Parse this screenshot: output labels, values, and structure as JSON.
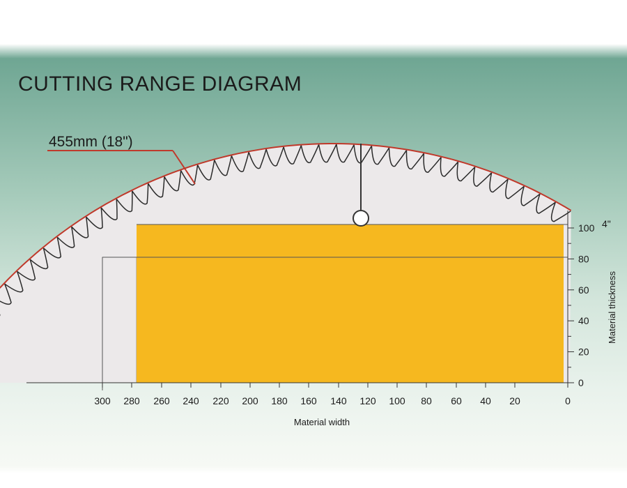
{
  "title": "CUTTING RANGE DIAGRAM",
  "blade_label": "455mm (18\")",
  "inch_label": "4\"",
  "x_axis": {
    "title": "Material width",
    "ticks": [
      "300",
      "280",
      "260",
      "240",
      "220",
      "200",
      "180",
      "160",
      "140",
      "120",
      "100",
      "80",
      "60",
      "40",
      "20",
      "0"
    ]
  },
  "y_axis": {
    "title": "Material thickness",
    "ticks": [
      "100",
      "80",
      "60",
      "40",
      "20",
      "0"
    ]
  },
  "colors": {
    "background_top": "#6fa693",
    "background_mid": "#cfe2d8",
    "blade_fill": "#ece9ea",
    "blade_outline": "#c0392b",
    "cutting_area": "#f6b81f",
    "lines": "#555555"
  },
  "chart_data": {
    "type": "area",
    "title": "CUTTING RANGE DIAGRAM",
    "xlabel": "Material width",
    "ylabel": "Material thickness",
    "x_reversed": true,
    "x_tick_labels": [
      "300",
      "280",
      "260",
      "240",
      "220",
      "200",
      "180",
      "160",
      "140",
      "120",
      "100",
      "80",
      "60",
      "40",
      "20",
      "0"
    ],
    "y_tick_labels": [
      "0",
      "20",
      "40",
      "60",
      "80",
      "100"
    ],
    "cutting_range": {
      "max_width": 278,
      "max_thickness": 102
    },
    "extended_range": {
      "max_width": 300,
      "max_thickness": 80
    },
    "blade_diameter": "455mm (18\")"
  }
}
